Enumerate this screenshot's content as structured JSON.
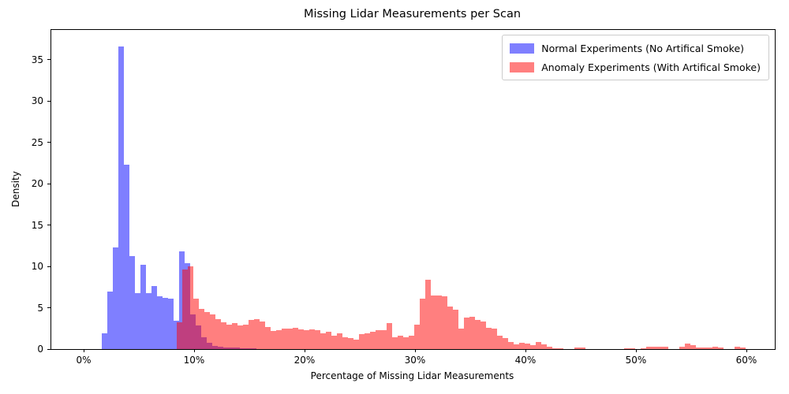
{
  "chart_data": {
    "type": "histogram",
    "title": "Missing Lidar Measurements per Scan",
    "xlabel": "Percentage of Missing Lidar Measurements",
    "ylabel": "Density",
    "legend_position": "upper right",
    "grid": false,
    "x_axis": {
      "unit": "%",
      "tick_values": [
        0,
        10,
        20,
        30,
        40,
        50,
        60
      ],
      "tick_labels": [
        "0%",
        "10%",
        "20%",
        "30%",
        "40%",
        "50%",
        "60%"
      ],
      "xlim": [
        -2.9,
        62.6
      ]
    },
    "y_axis": {
      "tick_values": [
        0,
        5,
        10,
        15,
        20,
        25,
        30,
        35
      ],
      "tick_labels": [
        "0",
        "5",
        "10",
        "15",
        "20",
        "25",
        "30",
        "35"
      ],
      "ylim": [
        0,
        38.6
      ]
    },
    "series": [
      {
        "name": "Normal Experiments (No Artifical Smoke)",
        "color": "rgba(0,0,255,0.5)",
        "color_on_white": "#7f7fff",
        "bin_start": 1.65,
        "bin_width": 0.5,
        "values": [
          1.9,
          7.0,
          12.3,
          36.6,
          22.3,
          11.2,
          6.8,
          10.2,
          6.8,
          7.6,
          6.4,
          6.2,
          6.1,
          3.4,
          11.8,
          10.4,
          4.2,
          2.9,
          1.4,
          0.8,
          0.4,
          0.3,
          0.2,
          0.15,
          0.15,
          0.1,
          0.1,
          0.1
        ]
      },
      {
        "name": "Anomaly Experiments (With Artifical Smoke)",
        "color": "rgba(255,0,0,0.5)",
        "color_on_white": "#ff7f7f",
        "overlap_color_with_normal": "#bf4080",
        "bin_start": 8.45,
        "bin_width": 0.5,
        "values": [
          3.2,
          9.6,
          10.0,
          6.05,
          4.9,
          4.5,
          4.2,
          3.6,
          3.2,
          3.0,
          3.1,
          2.9,
          3.0,
          3.5,
          3.6,
          3.3,
          2.7,
          2.2,
          2.3,
          2.45,
          2.45,
          2.55,
          2.4,
          2.25,
          2.35,
          2.3,
          1.95,
          2.1,
          1.6,
          1.95,
          1.45,
          1.3,
          1.15,
          1.8,
          1.95,
          2.1,
          2.25,
          2.25,
          3.1,
          1.45,
          1.6,
          1.45,
          1.6,
          3.0,
          6.1,
          8.4,
          6.5,
          6.5,
          6.4,
          5.1,
          4.8,
          2.5,
          3.85,
          3.9,
          3.5,
          3.35,
          2.55,
          2.45,
          1.6,
          1.3,
          0.85,
          0.6,
          0.75,
          0.7,
          0.5,
          0.9,
          0.55,
          0.25,
          0.12,
          0.08,
          0,
          0,
          0.2,
          0.15,
          0,
          0,
          0,
          0,
          0,
          0,
          0,
          0.08,
          0.05,
          0,
          0.1,
          0.25,
          0.3,
          0.3,
          0.25,
          0,
          0,
          0.3,
          0.65,
          0.5,
          0.2,
          0.2,
          0.2,
          0.25,
          0.2,
          0,
          0,
          0.3,
          0.15
        ]
      }
    ]
  }
}
